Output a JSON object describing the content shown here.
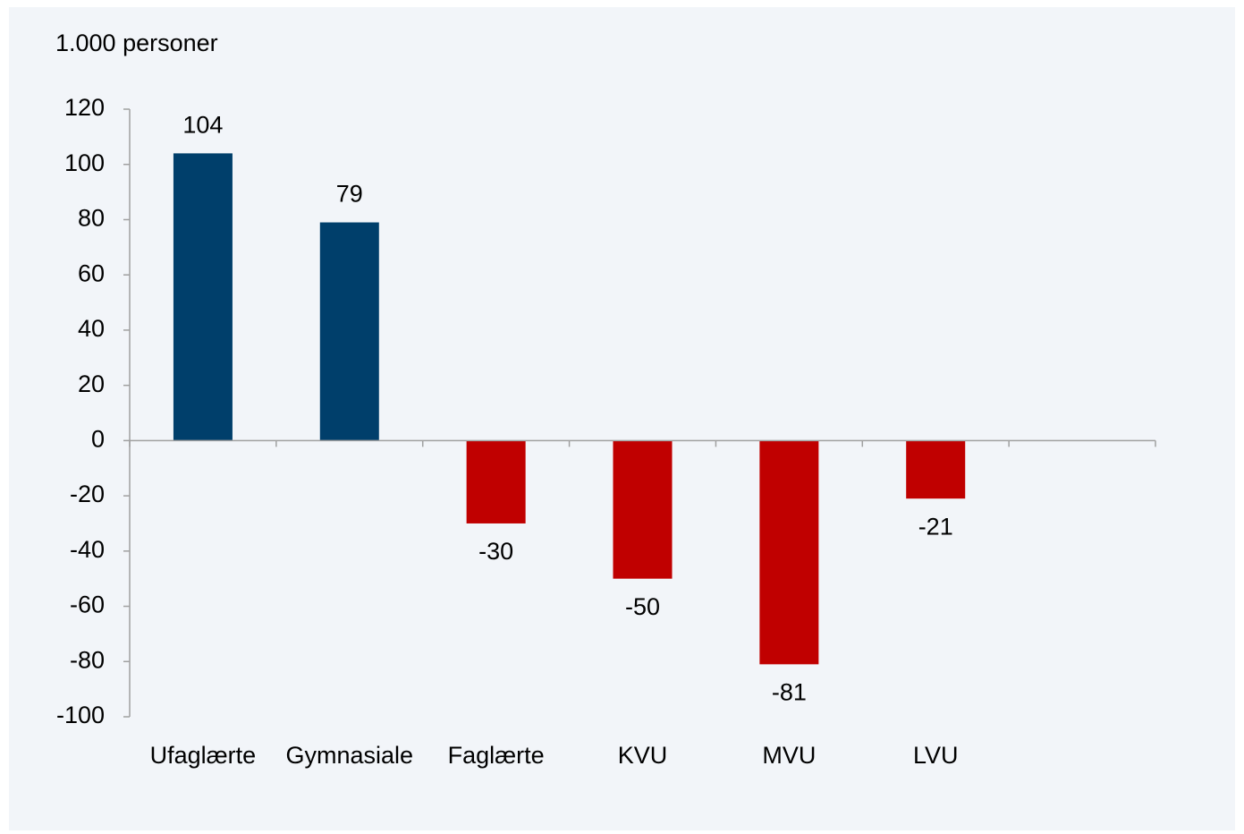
{
  "chart_data": {
    "type": "bar",
    "y_axis_label": "1.000 personer",
    "categories": [
      "Ufaglærte",
      "Gymnasiale",
      "Faglærte",
      "KVU",
      "MVU",
      "LVU",
      null
    ],
    "values": [
      104,
      79,
      -30,
      -50,
      -81,
      -21,
      null
    ],
    "colors": [
      "#003f6b",
      "#003f6b",
      "#c00000",
      "#c00000",
      "#c00000",
      "#c00000",
      null
    ],
    "ylim": [
      -100,
      120
    ],
    "yticks": [
      -100,
      -80,
      -60,
      -40,
      -20,
      0,
      20,
      40,
      60,
      80,
      100,
      120
    ],
    "grid": false
  }
}
